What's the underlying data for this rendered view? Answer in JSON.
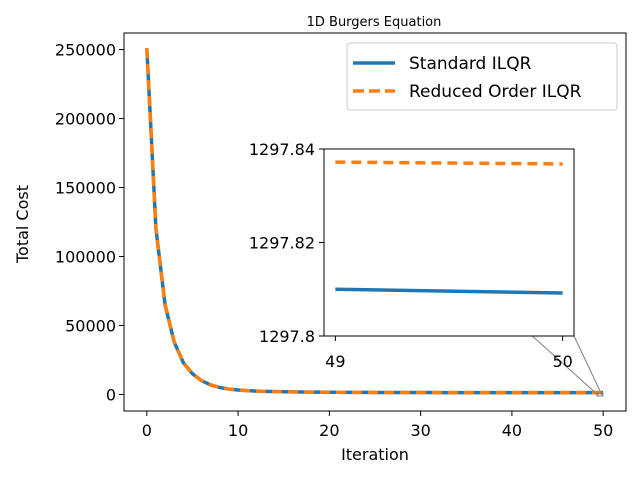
{
  "chart_data": {
    "type": "line",
    "title": "1D Burgers Equation",
    "xlabel": "Iteration",
    "ylabel": "Total Cost",
    "xlim": [
      -2.5,
      52.5
    ],
    "ylim": [
      -12000,
      262000
    ],
    "xticks": [
      0,
      10,
      20,
      30,
      40,
      50
    ],
    "yticks": [
      0,
      50000,
      100000,
      150000,
      200000,
      250000
    ],
    "legend_placement": "top-right",
    "grid": false,
    "x": [
      0,
      1,
      2,
      3,
      4,
      5,
      6,
      7,
      8,
      9,
      10,
      11,
      12,
      13,
      14,
      15,
      16,
      17,
      18,
      19,
      20,
      21,
      22,
      23,
      24,
      25,
      26,
      27,
      28,
      29,
      30,
      31,
      32,
      33,
      34,
      35,
      36,
      37,
      38,
      39,
      40,
      41,
      42,
      43,
      44,
      45,
      46,
      47,
      48,
      49,
      50
    ],
    "series": [
      {
        "name": "Standard ILQR",
        "color": "#1f77b4",
        "style": "solid",
        "values": [
          251000,
          120000,
          65000,
          38000,
          23000,
          15000,
          10000,
          6900,
          5000,
          3900,
          3200,
          2750,
          2450,
          2250,
          2080,
          1960,
          1860,
          1780,
          1700,
          1640,
          1590,
          1550,
          1520,
          1490,
          1460,
          1440,
          1420,
          1405,
          1390,
          1380,
          1372,
          1365,
          1358,
          1352,
          1346,
          1341,
          1336,
          1332,
          1328,
          1324,
          1320,
          1316,
          1313,
          1310,
          1307,
          1304,
          1302,
          1300,
          1299,
          1297.81,
          1297.809
        ]
      },
      {
        "name": "Reduced Order ILQR",
        "color": "#ff7f0e",
        "style": "dashed",
        "values": [
          251000,
          120000,
          65000,
          38000,
          23000,
          15000,
          10000,
          6900,
          5000,
          3900,
          3200,
          2750,
          2450,
          2250,
          2080,
          1960,
          1860,
          1780,
          1700,
          1640,
          1590,
          1550,
          1520,
          1490,
          1460,
          1440,
          1420,
          1405,
          1390,
          1380,
          1372,
          1365,
          1358,
          1352,
          1346,
          1341,
          1336,
          1332,
          1328,
          1324,
          1320,
          1316,
          1313,
          1310,
          1307,
          1304,
          1302,
          1300,
          1299,
          1297.8372,
          1297.8368
        ]
      }
    ],
    "inset": {
      "xlim": [
        48.95,
        50.05
      ],
      "ylim": [
        1297.8,
        1297.84
      ],
      "xticks": [
        49,
        50
      ],
      "ytick_labels": [
        "1297.84",
        "1297.82",
        "1297.8"
      ],
      "yticks": [
        1297.84,
        1297.82,
        1297.8
      ],
      "x": [
        49,
        50
      ],
      "series": [
        {
          "values": [
            1297.81,
            1297.8092
          ]
        },
        {
          "values": [
            1297.8372,
            1297.8368
          ]
        }
      ]
    }
  }
}
